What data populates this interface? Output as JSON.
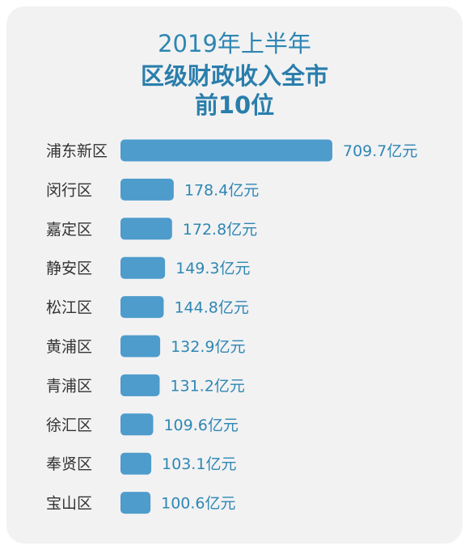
{
  "header": {
    "line1": "2019年上半年",
    "line2": "区级财政收入全市",
    "line3": "前10位"
  },
  "colors": {
    "bar": "#4e9ccc",
    "title": "#2a7eab",
    "value_text": "#2f87b3",
    "background": "#f2f2f3"
  },
  "chart_data": {
    "type": "bar",
    "orientation": "horizontal",
    "title": "2019年上半年 区级财政收入全市 前10位",
    "unit": "亿元",
    "categories": [
      "浦东新区",
      "闵行区",
      "嘉定区",
      "静安区",
      "松江区",
      "黄浦区",
      "青浦区",
      "徐汇区",
      "奉贤区",
      "宝山区"
    ],
    "values": [
      709.7,
      178.4,
      172.8,
      149.3,
      144.8,
      132.9,
      131.2,
      109.6,
      103.1,
      100.6
    ],
    "value_labels": [
      "709.7亿元",
      "178.4亿元",
      "172.8亿元",
      "149.3亿元",
      "144.8亿元",
      "132.9亿元",
      "131.2亿元",
      "109.6亿元",
      "103.1亿元",
      "100.6亿元"
    ],
    "grid": false,
    "legend": "none"
  }
}
